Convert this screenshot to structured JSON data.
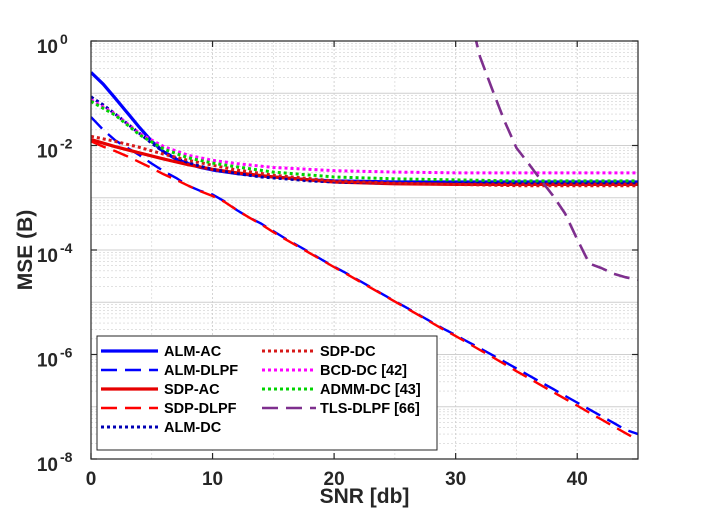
{
  "chart_data": {
    "type": "line",
    "xlabel": "SNR [db]",
    "ylabel": "MSE (B)",
    "xlim": [
      0,
      45
    ],
    "ylim_log10": [
      -8,
      0
    ],
    "yscale": "log",
    "grid": true,
    "legend_position": "bottom-left",
    "x_ticks": [
      {
        "value": 0,
        "label": "0"
      },
      {
        "value": 10,
        "label": "10"
      },
      {
        "value": 20,
        "label": "20"
      },
      {
        "value": 30,
        "label": "30"
      },
      {
        "value": 40,
        "label": "40"
      }
    ],
    "y_ticks": [
      {
        "value": 0,
        "base": "10",
        "exp": "0"
      },
      {
        "value": -2,
        "base": "10",
        "exp": "-2"
      },
      {
        "value": -4,
        "base": "10",
        "exp": "-4"
      },
      {
        "value": -6,
        "base": "10",
        "exp": "-6"
      },
      {
        "value": -8,
        "base": "10",
        "exp": "-8"
      }
    ],
    "series": [
      {
        "name": "ALM-AC",
        "color": "#0000ff",
        "style": "solid",
        "width": 3.2,
        "x": [
          0,
          1,
          2,
          3,
          4,
          5,
          6,
          7,
          8,
          9,
          10,
          12,
          14,
          16,
          18,
          20,
          25,
          30,
          35,
          40,
          45
        ],
        "y": [
          0.25,
          0.15,
          0.08,
          0.042,
          0.022,
          0.012,
          0.0075,
          0.0055,
          0.0045,
          0.0038,
          0.0034,
          0.0029,
          0.0026,
          0.0024,
          0.0022,
          0.0021,
          0.002,
          0.002,
          0.002,
          0.002,
          0.002
        ]
      },
      {
        "name": "ALM-DLPF",
        "color": "#0000ff",
        "style": "dashed",
        "width": 2.4,
        "x": [
          0,
          1,
          2,
          3,
          4,
          5,
          6,
          7,
          8,
          9,
          10,
          11,
          12,
          13,
          14,
          15,
          16,
          17,
          18,
          19,
          20,
          21,
          22,
          23,
          24,
          25,
          26,
          27,
          28,
          29,
          30,
          31,
          32,
          33,
          34,
          35,
          36,
          37,
          38,
          39,
          40,
          41,
          42,
          43,
          44,
          45
        ],
        "y": [
          0.035,
          0.02,
          0.0125,
          0.009,
          0.0065,
          0.0045,
          0.0032,
          0.0024,
          0.0017,
          0.00135,
          0.00115,
          0.00085,
          0.00058,
          0.00042,
          0.00032,
          0.00023,
          0.000165,
          0.000122,
          9e-05,
          6.5e-05,
          4.8e-05,
          3.6e-05,
          2.65e-05,
          1.95e-05,
          1.42e-05,
          1.05e-05,
          7.8e-06,
          5.7e-06,
          4.2e-06,
          3.1e-06,
          2.35e-06,
          1.75e-06,
          1.32e-06,
          9.8e-07,
          7.3e-07,
          5.4e-07,
          4e-07,
          2.95e-07,
          2.2e-07,
          1.62e-07,
          1.2e-07,
          8.9e-08,
          6.6e-08,
          4.9e-08,
          3.6e-08,
          3e-08
        ]
      },
      {
        "name": "SDP-AC",
        "color": "#e60000",
        "style": "solid",
        "width": 3.2,
        "x": [
          0,
          2,
          4,
          6,
          8,
          10,
          12,
          15,
          20,
          25,
          30,
          35,
          40,
          45
        ],
        "y": [
          0.013,
          0.0095,
          0.0072,
          0.0055,
          0.0043,
          0.0035,
          0.003,
          0.0025,
          0.002,
          0.00185,
          0.0018,
          0.0018,
          0.0018,
          0.0018
        ]
      },
      {
        "name": "SDP-DLPF",
        "color": "#ff0000",
        "style": "dashed",
        "width": 2.4,
        "x": [
          0,
          1,
          2,
          3,
          4,
          5,
          6,
          7,
          8,
          9,
          10,
          11,
          12,
          13,
          14,
          15,
          16,
          17,
          18,
          19,
          20,
          21,
          22,
          23,
          24,
          25,
          26,
          27,
          28,
          29,
          30,
          31,
          32,
          33,
          34,
          35,
          36,
          37,
          38,
          39,
          40,
          41,
          42,
          43,
          44,
          45
        ],
        "y": [
          0.012,
          0.0095,
          0.0078,
          0.0062,
          0.0048,
          0.0037,
          0.0028,
          0.0022,
          0.0017,
          0.00133,
          0.00108,
          0.00083,
          0.00058,
          0.00042,
          0.00031,
          0.00022,
          0.00016,
          0.000118,
          8.7e-05,
          6.4e-05,
          4.7e-05,
          3.5e-05,
          2.57e-05,
          1.9e-05,
          1.4e-05,
          1.03e-05,
          7.6e-06,
          5.6e-06,
          4.1e-06,
          3e-06,
          2.25e-06,
          1.66e-06,
          1.22e-06,
          9e-07,
          6.6e-07,
          4.8e-07,
          3.55e-07,
          2.6e-07,
          1.92e-07,
          1.42e-07,
          1.05e-07,
          7.7e-08,
          5.7e-08,
          4.2e-08,
          3.1e-08,
          2.3e-08
        ]
      },
      {
        "name": "ALM-DC",
        "color": "#0000b4",
        "style": "dotted",
        "width": 3,
        "x": [
          0,
          1,
          2,
          3,
          4,
          5,
          6,
          7,
          8,
          9,
          10,
          12,
          14,
          16,
          18,
          20,
          25,
          30,
          35,
          40,
          45
        ],
        "y": [
          0.085,
          0.06,
          0.04,
          0.026,
          0.017,
          0.011,
          0.0075,
          0.0057,
          0.0047,
          0.004,
          0.0035,
          0.0029,
          0.0025,
          0.0023,
          0.0021,
          0.002,
          0.0019,
          0.0019,
          0.0019,
          0.0019,
          0.0019
        ]
      },
      {
        "name": "SDP-DC",
        "color": "#d71919",
        "style": "dotted",
        "width": 3,
        "x": [
          0,
          2,
          4,
          6,
          8,
          10,
          12,
          15,
          20,
          25,
          30,
          35,
          40,
          45
        ],
        "y": [
          0.015,
          0.012,
          0.0092,
          0.0068,
          0.0052,
          0.0042,
          0.0034,
          0.0027,
          0.0021,
          0.0019,
          0.0018,
          0.0017,
          0.0017,
          0.0017
        ]
      },
      {
        "name": "BCD-DC [42]",
        "color": "#ff00ff",
        "style": "dotted",
        "width": 3,
        "x": [
          0,
          2,
          4,
          6,
          8,
          10,
          12,
          15,
          20,
          25,
          30,
          35,
          40,
          45
        ],
        "y": [
          0.075,
          0.04,
          0.017,
          0.0095,
          0.0065,
          0.0052,
          0.0045,
          0.0038,
          0.0033,
          0.0031,
          0.003,
          0.003,
          0.003,
          0.003
        ]
      },
      {
        "name": "ADMM-DC [43]",
        "color": "#00d400",
        "style": "dotted",
        "width": 3,
        "x": [
          0,
          2,
          4,
          6,
          8,
          10,
          12,
          15,
          20,
          25,
          30,
          35,
          40,
          45
        ],
        "y": [
          0.07,
          0.038,
          0.016,
          0.0085,
          0.0058,
          0.0046,
          0.0039,
          0.0031,
          0.0025,
          0.0023,
          0.0022,
          0.0021,
          0.0021,
          0.0021
        ]
      },
      {
        "name": "TLS-DLPF [66]",
        "color": "#7e2f8e",
        "style": "dashed",
        "width": 2.6,
        "x": [
          31.5,
          32,
          33,
          34,
          35,
          36,
          37,
          38,
          39,
          40,
          41,
          42,
          43,
          44,
          45
        ],
        "y": [
          1.5,
          0.5,
          0.12,
          0.03,
          0.009,
          0.0045,
          0.0022,
          0.0011,
          0.0005,
          0.00016,
          5.5e-05,
          4.5e-05,
          3.5e-05,
          3e-05,
          2.7e-05
        ]
      }
    ]
  }
}
